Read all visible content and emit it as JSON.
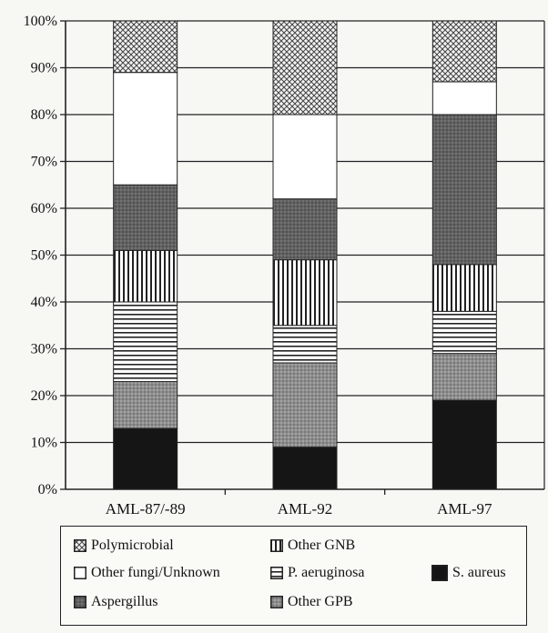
{
  "chart_data": {
    "type": "bar",
    "stacked": true,
    "categories": [
      "AML-87/-89",
      "AML-92",
      "AML-97"
    ],
    "y_tick_labels": [
      "0%",
      "10%",
      "20%",
      "30%",
      "40%",
      "50%",
      "60%",
      "70%",
      "80%",
      "90%",
      "100%"
    ],
    "ylim": [
      0,
      100
    ],
    "grid": true,
    "legend_position": "bottom",
    "series": [
      {
        "name": "S. aureus",
        "values": [
          13,
          9,
          19
        ],
        "pattern": "solid-black"
      },
      {
        "name": "Other GPB",
        "values": [
          10,
          18,
          10
        ],
        "pattern": "stipple-gray"
      },
      {
        "name": "P. aeruginosa",
        "values": [
          17,
          8,
          9
        ],
        "pattern": "horizontal-lines"
      },
      {
        "name": "Other GNB",
        "values": [
          11,
          14,
          10
        ],
        "pattern": "vertical-lines"
      },
      {
        "name": "Aspergillus",
        "values": [
          14,
          13,
          32
        ],
        "pattern": "dark-stipple"
      },
      {
        "name": "Other fungi/Unknown",
        "values": [
          24,
          18,
          7
        ],
        "pattern": "white"
      },
      {
        "name": "Polymicrobial",
        "values": [
          11,
          20,
          13
        ],
        "pattern": "crosshatch"
      }
    ]
  },
  "legend": {
    "items": [
      {
        "label": "Polymicrobial",
        "pattern": "crosshatch"
      },
      {
        "label": "Other GNB",
        "pattern": "vertical-lines"
      },
      {
        "label": "Other fungi/Unknown",
        "pattern": "white"
      },
      {
        "label": "P. aeruginosa",
        "pattern": "horizontal-lines"
      },
      {
        "label": "S. aureus",
        "pattern": "solid-black"
      },
      {
        "label": "Aspergillus",
        "pattern": "dark-stipple"
      },
      {
        "label": "Other GPB",
        "pattern": "stipple-gray"
      }
    ]
  },
  "colors": {
    "background": "#f7f7f4",
    "axis": "#222222",
    "solid": "#151515",
    "stipple": "#8a8a8a",
    "dark_stipple": "#5e5e5e"
  }
}
